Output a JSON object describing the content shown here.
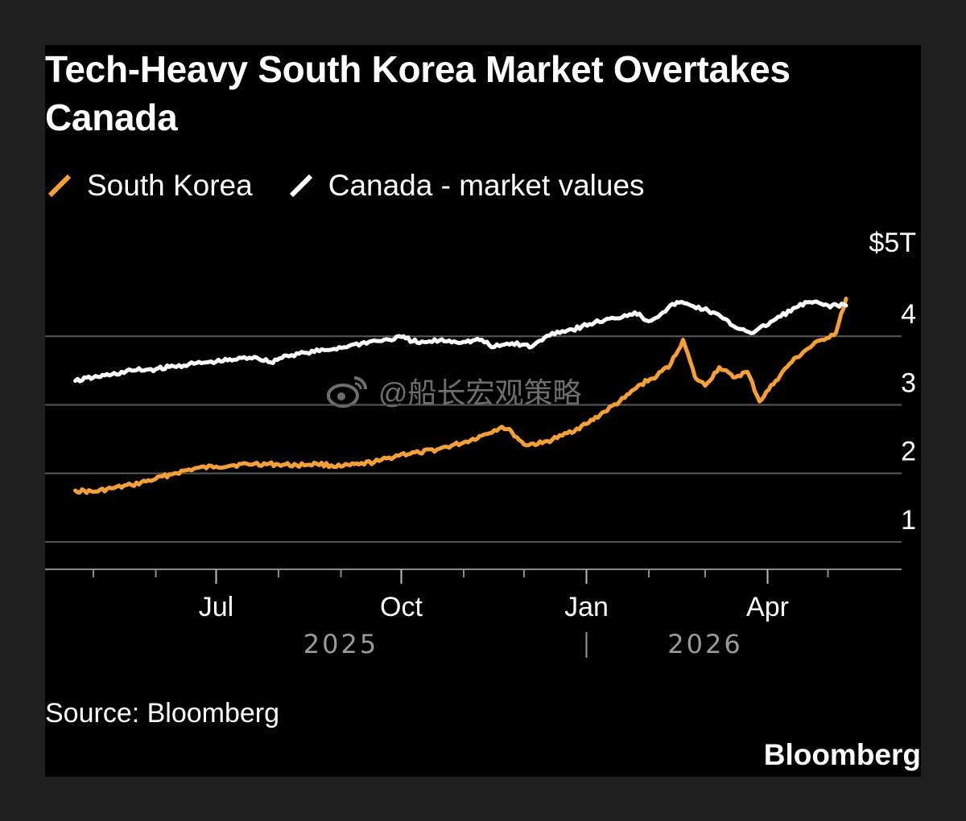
{
  "chart_data": {
    "type": "line",
    "title": "Tech-Heavy South Korea Market Overtakes Canada",
    "y_unit_label": "$5T",
    "yticks": [
      {
        "value": 1,
        "label": "1"
      },
      {
        "value": 2,
        "label": "2"
      },
      {
        "value": 3,
        "label": "3"
      },
      {
        "value": 4,
        "label": "4"
      },
      {
        "value": 5,
        "label": "$5T"
      }
    ],
    "ylim": [
      0.6,
      5
    ],
    "xlim": [
      "2025-04-15",
      "2026-05-12"
    ],
    "x_month_labels": [
      {
        "date": "2025-07-01",
        "label": "Jul"
      },
      {
        "date": "2025-10-01",
        "label": "Oct"
      },
      {
        "date": "2026-01-01",
        "label": "Jan"
      },
      {
        "date": "2026-04-01",
        "label": "Apr"
      }
    ],
    "x_minor_ticks": [
      "2025-05-01",
      "2025-06-01",
      "2025-08-01",
      "2025-09-01",
      "2025-11-01",
      "2025-12-01",
      "2026-02-01",
      "2026-03-01",
      "2026-05-01"
    ],
    "year_labels": [
      {
        "date": "2025-09-01",
        "label": "2025"
      },
      {
        "date": "2026-03-01",
        "label": "2026"
      }
    ],
    "year_divider_date": "2026-01-01",
    "grid": true,
    "legend_position": "top-left",
    "series": [
      {
        "name": "South Korea",
        "color": "#f7a032",
        "points": [
          [
            "2025-04-22",
            1.75
          ],
          [
            "2025-05-01",
            1.73
          ],
          [
            "2025-05-10",
            1.78
          ],
          [
            "2025-05-20",
            1.83
          ],
          [
            "2025-06-01",
            1.92
          ],
          [
            "2025-06-10",
            2.0
          ],
          [
            "2025-06-20",
            2.07
          ],
          [
            "2025-07-01",
            2.1
          ],
          [
            "2025-07-10",
            2.12
          ],
          [
            "2025-07-20",
            2.14
          ],
          [
            "2025-08-01",
            2.13
          ],
          [
            "2025-08-10",
            2.12
          ],
          [
            "2025-08-20",
            2.14
          ],
          [
            "2025-09-01",
            2.1
          ],
          [
            "2025-09-10",
            2.13
          ],
          [
            "2025-09-20",
            2.18
          ],
          [
            "2025-10-01",
            2.28
          ],
          [
            "2025-10-10",
            2.3
          ],
          [
            "2025-10-20",
            2.36
          ],
          [
            "2025-11-01",
            2.45
          ],
          [
            "2025-11-10",
            2.55
          ],
          [
            "2025-11-20",
            2.68
          ],
          [
            "2025-11-25",
            2.6
          ],
          [
            "2025-12-01",
            2.42
          ],
          [
            "2025-12-10",
            2.44
          ],
          [
            "2025-12-20",
            2.55
          ],
          [
            "2026-01-01",
            2.72
          ],
          [
            "2026-01-10",
            2.9
          ],
          [
            "2026-01-20",
            3.1
          ],
          [
            "2026-01-28",
            3.3
          ],
          [
            "2026-02-05",
            3.42
          ],
          [
            "2026-02-12",
            3.6
          ],
          [
            "2026-02-18",
            3.95
          ],
          [
            "2026-02-24",
            3.4
          ],
          [
            "2026-03-01",
            3.28
          ],
          [
            "2026-03-08",
            3.55
          ],
          [
            "2026-03-15",
            3.4
          ],
          [
            "2026-03-22",
            3.48
          ],
          [
            "2026-03-28",
            3.05
          ],
          [
            "2026-04-05",
            3.35
          ],
          [
            "2026-04-12",
            3.6
          ],
          [
            "2026-04-20",
            3.8
          ],
          [
            "2026-04-28",
            3.95
          ],
          [
            "2026-05-05",
            4.05
          ],
          [
            "2026-05-10",
            4.55
          ]
        ]
      },
      {
        "name": "Canada - market values",
        "color": "#ffffff",
        "points": [
          [
            "2025-04-22",
            3.35
          ],
          [
            "2025-05-01",
            3.4
          ],
          [
            "2025-05-10",
            3.44
          ],
          [
            "2025-05-20",
            3.5
          ],
          [
            "2025-06-01",
            3.52
          ],
          [
            "2025-06-10",
            3.56
          ],
          [
            "2025-06-20",
            3.6
          ],
          [
            "2025-07-01",
            3.63
          ],
          [
            "2025-07-10",
            3.66
          ],
          [
            "2025-07-20",
            3.7
          ],
          [
            "2025-07-28",
            3.62
          ],
          [
            "2025-08-05",
            3.72
          ],
          [
            "2025-08-15",
            3.76
          ],
          [
            "2025-08-25",
            3.8
          ],
          [
            "2025-09-05",
            3.86
          ],
          [
            "2025-09-15",
            3.92
          ],
          [
            "2025-09-25",
            3.95
          ],
          [
            "2025-10-01",
            3.99
          ],
          [
            "2025-10-10",
            3.9
          ],
          [
            "2025-10-20",
            3.94
          ],
          [
            "2025-11-01",
            3.92
          ],
          [
            "2025-11-10",
            3.95
          ],
          [
            "2025-11-15",
            3.84
          ],
          [
            "2025-11-25",
            3.9
          ],
          [
            "2025-12-05",
            3.85
          ],
          [
            "2025-12-15",
            4.05
          ],
          [
            "2025-12-25",
            4.1
          ],
          [
            "2026-01-05",
            4.2
          ],
          [
            "2026-01-15",
            4.26
          ],
          [
            "2026-01-25",
            4.35
          ],
          [
            "2026-02-01",
            4.22
          ],
          [
            "2026-02-08",
            4.35
          ],
          [
            "2026-02-15",
            4.5
          ],
          [
            "2026-02-22",
            4.45
          ],
          [
            "2026-03-05",
            4.35
          ],
          [
            "2026-03-15",
            4.15
          ],
          [
            "2026-03-25",
            4.05
          ],
          [
            "2026-04-05",
            4.25
          ],
          [
            "2026-04-15",
            4.42
          ],
          [
            "2026-04-22",
            4.5
          ],
          [
            "2026-05-01",
            4.45
          ],
          [
            "2026-05-10",
            4.45
          ]
        ]
      }
    ],
    "source": "Source: Bloomberg"
  },
  "legend": [
    {
      "label": "South Korea",
      "color": "#f7a032"
    },
    {
      "label": "Canada - market values",
      "color": "#ffffff"
    }
  ],
  "brand": "Bloomberg",
  "watermark": "@船长宏观策略"
}
